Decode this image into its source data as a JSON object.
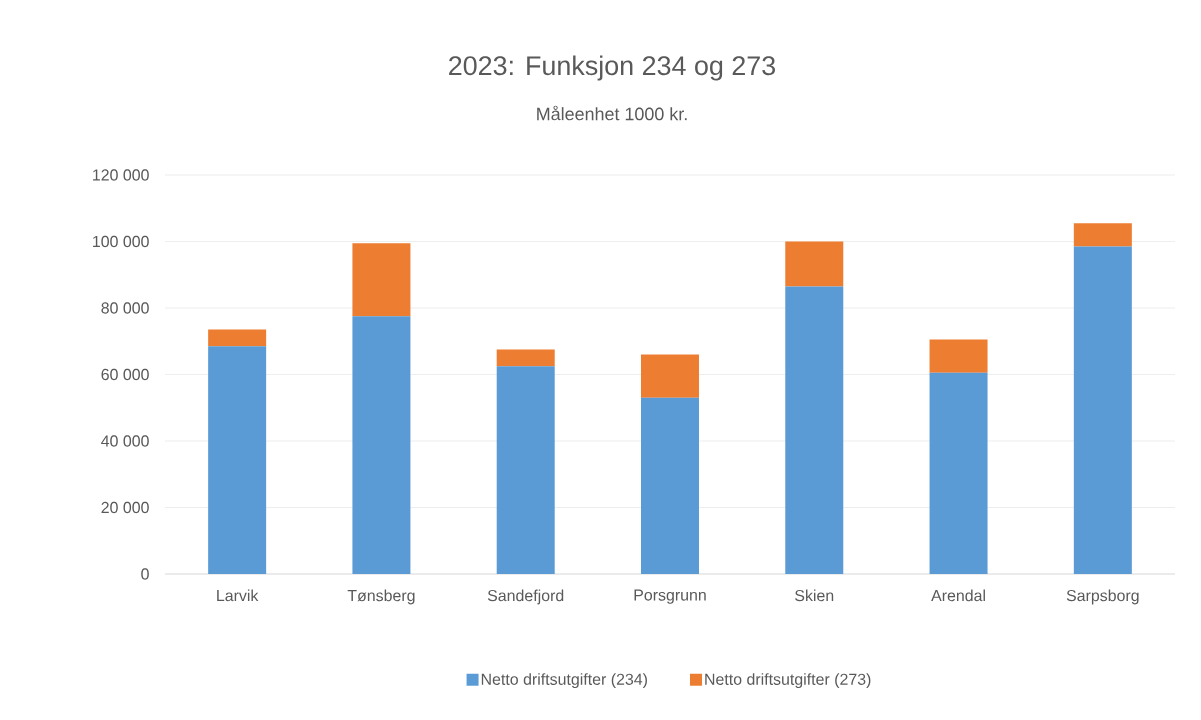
{
  "chart_data": {
    "type": "bar",
    "title": "2023: Funksjon 234 og 273",
    "subtitle": "Måleenhet 1000 kr.",
    "stacked": true,
    "grid": "y",
    "legend": "bottom",
    "categories": [
      "Larvik",
      "Tønsberg",
      "Sandefjord",
      "Porsgrunn",
      "Skien",
      "Arendal",
      "Sarpsborg"
    ],
    "series": [
      {
        "name": "Netto driftsutgifter (234)",
        "color": "#5b9bd5",
        "values": [
          68500,
          77500,
          62500,
          53000,
          86500,
          60500,
          98500
        ]
      },
      {
        "name": "Netto driftsutgifter (273)",
        "color": "#ed7d31",
        "values": [
          5000,
          22000,
          5000,
          13000,
          13500,
          10000,
          7000
        ]
      }
    ],
    "ylim": [
      0,
      120000
    ],
    "yticks": [
      {
        "value": 0,
        "label": "0"
      },
      {
        "value": 20000,
        "label": "20 000"
      },
      {
        "value": 40000,
        "label": "40 000"
      },
      {
        "value": 60000,
        "label": "60 000"
      },
      {
        "value": 80000,
        "label": "80 000"
      },
      {
        "value": 100000,
        "label": "100 000"
      },
      {
        "value": 120000,
        "label": "120 000"
      }
    ]
  }
}
